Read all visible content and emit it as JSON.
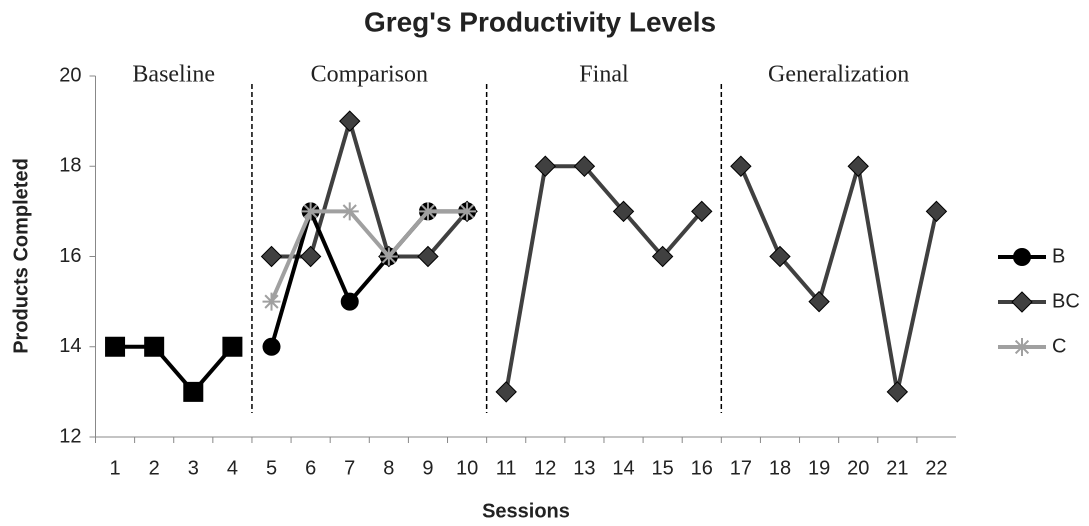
{
  "chart_data": {
    "type": "line",
    "title": "Greg's Productivity Levels",
    "x_label": "Sessions",
    "y_label": "Products Completed",
    "x": [
      1,
      2,
      3,
      4,
      5,
      6,
      7,
      8,
      9,
      10,
      11,
      12,
      13,
      14,
      15,
      16,
      17,
      18,
      19,
      20,
      21,
      22
    ],
    "xlim": [
      0.5,
      22.5
    ],
    "ylim": [
      12,
      20
    ],
    "yticks": [
      12,
      14,
      16,
      18,
      20
    ],
    "phases": [
      {
        "label": "Baseline",
        "center": 2.5
      },
      {
        "label": "Comparison",
        "center": 7.5
      },
      {
        "label": "Final",
        "center": 13.5
      },
      {
        "label": "Generalization",
        "center": 19.5
      }
    ],
    "phase_boundaries": [
      4.5,
      10.5,
      16.5
    ],
    "legend": "right",
    "series": [
      {
        "color": "#000000",
        "marker": "square",
        "values": [
          14,
          14,
          13,
          14,
          null,
          null,
          null,
          null,
          null,
          null,
          null,
          null,
          null,
          null,
          null,
          null,
          null,
          null,
          null,
          null,
          null,
          null
        ]
      },
      {
        "name": "BC",
        "color": "#404040",
        "marker": "diamond",
        "values": [
          null,
          null,
          null,
          null,
          16,
          16,
          19,
          16,
          16,
          17,
          null,
          null,
          null,
          null,
          null,
          null,
          null,
          null,
          null,
          null,
          null,
          null
        ]
      },
      {
        "color": "#404040",
        "marker": "diamond",
        "values": [
          null,
          null,
          null,
          null,
          null,
          null,
          null,
          null,
          null,
          null,
          13,
          18,
          18,
          17,
          16,
          17,
          null,
          null,
          null,
          null,
          null,
          null
        ]
      },
      {
        "color": "#404040",
        "marker": "diamond",
        "values": [
          null,
          null,
          null,
          null,
          null,
          null,
          null,
          null,
          null,
          null,
          null,
          null,
          null,
          null,
          null,
          null,
          18,
          16,
          15,
          18,
          13,
          17
        ]
      },
      {
        "name": "B",
        "color": "#000000",
        "marker": "circle",
        "values": [
          null,
          null,
          null,
          null,
          14,
          17,
          15,
          16,
          17,
          17,
          null,
          null,
          null,
          null,
          null,
          null,
          null,
          null,
          null,
          null,
          null,
          null
        ]
      },
      {
        "name": "C",
        "color": "#a0a0a0",
        "marker": "asterisk",
        "values": [
          null,
          null,
          null,
          null,
          15,
          17,
          17,
          16,
          17,
          17,
          null,
          null,
          null,
          null,
          null,
          null,
          null,
          null,
          null,
          null,
          null,
          null
        ]
      }
    ]
  }
}
